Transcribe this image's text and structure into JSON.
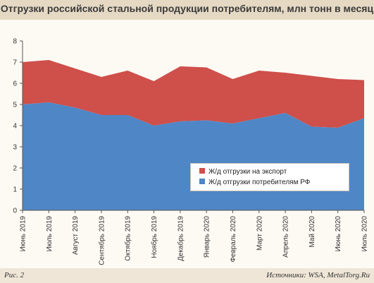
{
  "header": {
    "title": "Отгрузки российской стальной продукции потребителям, млн тонн в месяц"
  },
  "footer": {
    "figure_label": "Рис. 2",
    "source_label": "Источники:",
    "source_text": "WSA, MetalTorg.Ru"
  },
  "colors": {
    "export": "#cf4f4b",
    "domestic": "#4f86c6",
    "background": "#fdfaf4",
    "frame": "#efe6d7"
  },
  "chart_data": {
    "type": "area",
    "stacked": true,
    "title": "Отгрузки российской стальной продукции потребителям, млн тонн в месяц",
    "xlabel": "",
    "ylabel": "",
    "ylim": [
      0,
      8
    ],
    "yticks": [
      "0",
      "1",
      "2",
      "3",
      "4",
      "5",
      "6",
      "7",
      "8"
    ],
    "grid": false,
    "legend_position": "lower-right",
    "categories": [
      "Июнь 2019",
      "Июль 2019",
      "Август 2019",
      "Сентябрь 2019",
      "Октябрь 2019",
      "Ноябрь 2019",
      "Декабрь 2019",
      "Январь 2020",
      "Февраль 2020",
      "Март 2020",
      "Апрель 2020",
      "Май 2020",
      "Июнь 2020",
      "Июль 2020"
    ],
    "series": [
      {
        "name": "Ж/д отгрузки потребителям РФ",
        "color": "#4f86c6",
        "values": [
          5.0,
          5.1,
          4.85,
          4.5,
          4.5,
          4.0,
          4.2,
          4.25,
          4.1,
          4.35,
          4.6,
          3.95,
          3.9,
          4.35
        ]
      },
      {
        "name": "Ж/д отгрузки на экспорт",
        "color": "#cf4f4b",
        "values": [
          2.0,
          2.0,
          1.85,
          1.8,
          2.1,
          2.1,
          2.6,
          2.5,
          2.1,
          2.25,
          1.9,
          2.4,
          2.3,
          1.8
        ]
      }
    ],
    "legend": [
      "Ж/д отгрузки на экспорт",
      "Ж/д отгрузки потребителям РФ"
    ]
  }
}
